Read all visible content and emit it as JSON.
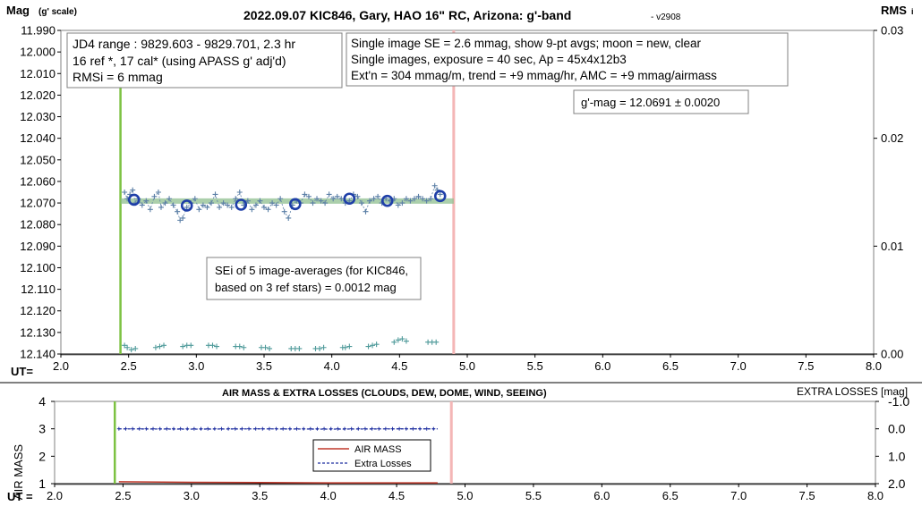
{
  "title": "2022.09.07 KIC846, Gary, HAO 16\" RC, Arizona: g'-band",
  "version": "- v2908",
  "top": {
    "ylabel_main": "Mag",
    "ylabel_sub": "(g' scale)",
    "y2label_main": "RMS",
    "y2label_sub": "i",
    "ut_label": "UT=",
    "ylim": [
      11.99,
      12.14
    ],
    "ytick_labels": [
      "11.990",
      "12.000",
      "12.010",
      "12.020",
      "12.030",
      "12.040",
      "12.050",
      "12.060",
      "12.070",
      "12.080",
      "12.090",
      "12.100",
      "12.110",
      "12.120",
      "12.130",
      "12.140"
    ],
    "y2lim": [
      0.0,
      0.03
    ],
    "y2tick_labels": [
      "0.00",
      "0.01",
      "0.02",
      "0.03"
    ],
    "xlim": [
      2.0,
      8.0
    ],
    "xtick_labels": [
      "2.0",
      "2.5",
      "3.0",
      "3.5",
      "4.0",
      "4.5",
      "5.0",
      "5.5",
      "6.0",
      "6.5",
      "7.0",
      "7.5",
      "8.0"
    ],
    "box1": [
      "JD4 range : 9829.603 - 9829.701,  2.3 hr",
      "16 ref *, 17 cal* (using APASS g' adj'd)",
      "RMSi = 6 mmag"
    ],
    "box2": [
      "Single image SE = 2.6 mmag, show  9-pt avgs; moon = new, clear",
      "Single images, exposure = 40 sec, Ap = 45x4x12b3",
      "Ext'n = 304 mmag/m, trend = +9 mmag/hr, AMC = +9 mmag/airmass"
    ],
    "gmag_box": "g'-mag = 12.0691 ± 0.0020",
    "sei_box": [
      "SEi of 5 image-averages (for KIC846,",
      "based on 3 ref stars) = 0.0012 mag"
    ]
  },
  "bottom": {
    "title": "AIR MASS & EXTRA LOSSES (CLOUDS, DEW, DOME, WIND, SEEING)",
    "ylabel": "AIR MASS",
    "y2label": "EXTRA LOSSES [mag]",
    "ut_label": "UT =",
    "ylim": [
      1,
      4
    ],
    "ytick_labels": [
      "1",
      "2",
      "3",
      "4"
    ],
    "y2tick_labels": [
      "-1.0",
      "0.0",
      "1.0",
      "2.0"
    ],
    "xtick_labels": [
      "2.0",
      "2.5",
      "3.0",
      "3.5",
      "4.0",
      "4.5",
      "5.0",
      "5.5",
      "6.0",
      "6.5",
      "7.0",
      "7.5",
      "8.0"
    ],
    "legend": [
      "AIR MASS",
      "Extra Losses"
    ]
  },
  "colors": {
    "start_line": "#7dc242",
    "end_line": "#f4b6b6",
    "avg_circles": "#1f3fa8",
    "points": "#5b7fa6",
    "rms_points": "#4f9a9a",
    "fit_band": "#8fbf8f",
    "airmass": "#c0392b",
    "extra_losses": "#1f2fa0"
  },
  "chart_data": [
    {
      "type": "scatter",
      "title": "2022.09.07 KIC846, Gary, HAO 16\" RC, Arizona: g'-band",
      "xlabel": "UT=",
      "ylabel": "Mag (g' scale)",
      "xlim": [
        2.0,
        8.0
      ],
      "ylim": [
        11.99,
        12.14
      ],
      "y_inverted": true,
      "y2lim": [
        0.0,
        0.03
      ],
      "ut_start": 2.44,
      "ut_end": 4.9,
      "grid": false,
      "series": [
        {
          "name": "single images",
          "x": [
            2.47,
            2.49,
            2.51,
            2.53,
            2.55,
            2.57,
            2.6,
            2.63,
            2.66,
            2.69,
            2.72,
            2.74,
            2.77,
            2.8,
            2.83,
            2.86,
            2.88,
            2.9,
            2.93,
            2.96,
            2.99,
            3.02,
            3.05,
            3.08,
            3.11,
            3.14,
            3.17,
            3.2,
            3.23,
            3.26,
            3.29,
            3.32,
            3.35,
            3.38,
            3.41,
            3.44,
            3.47,
            3.5,
            3.53,
            3.56,
            3.59,
            3.62,
            3.65,
            3.68,
            3.71,
            3.74,
            3.77,
            3.8,
            3.83,
            3.86,
            3.89,
            3.92,
            3.95,
            3.98,
            4.01,
            4.04,
            4.07,
            4.1,
            4.13,
            4.16,
            4.19,
            4.22,
            4.25,
            4.28,
            4.31,
            4.34,
            4.37,
            4.4,
            4.43,
            4.46,
            4.49,
            4.52,
            4.55,
            4.58,
            4.61,
            4.64,
            4.67,
            4.7,
            4.73,
            4.76,
            4.78,
            4.8
          ],
          "y": [
            12.065,
            12.068,
            12.066,
            12.064,
            12.07,
            12.068,
            12.071,
            12.069,
            12.073,
            12.067,
            12.065,
            12.072,
            12.07,
            12.068,
            12.071,
            12.074,
            12.078,
            12.077,
            12.072,
            12.07,
            12.068,
            12.073,
            12.071,
            12.072,
            12.07,
            12.066,
            12.072,
            12.07,
            12.071,
            12.072,
            12.068,
            12.065,
            12.071,
            12.069,
            12.073,
            12.071,
            12.069,
            12.072,
            12.073,
            12.07,
            12.071,
            12.068,
            12.074,
            12.077,
            12.071,
            12.069,
            12.07,
            12.066,
            12.067,
            12.07,
            12.068,
            12.069,
            12.07,
            12.066,
            12.068,
            12.067,
            12.068,
            12.07,
            12.069,
            12.066,
            12.067,
            12.07,
            12.074,
            12.069,
            12.068,
            12.067,
            12.07,
            12.068,
            12.069,
            12.068,
            12.071,
            12.07,
            12.068,
            12.069,
            12.068,
            12.067,
            12.068,
            12.069,
            12.068,
            12.062,
            12.064,
            12.066
          ]
        },
        {
          "name": "9-pt averages",
          "x": [
            2.54,
            2.93,
            3.33,
            3.73,
            4.13,
            4.41,
            4.8
          ],
          "y": [
            12.0685,
            12.0712,
            12.0708,
            12.0705,
            12.068,
            12.069,
            12.0668
          ]
        },
        {
          "name": "fit",
          "x": [
            2.44,
            4.9
          ],
          "y": [
            12.0691,
            12.0691
          ]
        },
        {
          "name": "RMSi",
          "axis": "y2",
          "x": [
            2.47,
            2.49,
            2.52,
            2.55,
            2.7,
            2.73,
            2.76,
            2.9,
            2.93,
            2.96,
            3.09,
            3.12,
            3.15,
            3.29,
            3.32,
            3.35,
            3.48,
            3.51,
            3.54,
            3.7,
            3.73,
            3.76,
            3.88,
            3.91,
            3.94,
            4.08,
            4.1,
            4.13,
            4.27,
            4.3,
            4.33,
            4.46,
            4.49,
            4.52,
            4.55,
            4.71,
            4.74,
            4.77
          ],
          "y": [
            0.0008,
            0.0006,
            0.0004,
            0.0005,
            0.0006,
            0.0007,
            0.0008,
            0.0007,
            0.0008,
            0.0008,
            0.0008,
            0.0008,
            0.0007,
            0.0007,
            0.0007,
            0.0006,
            0.0006,
            0.0006,
            0.0005,
            0.0005,
            0.0005,
            0.0005,
            0.0005,
            0.0005,
            0.0006,
            0.0006,
            0.0006,
            0.0007,
            0.0007,
            0.0008,
            0.0009,
            0.0011,
            0.0013,
            0.0014,
            0.0012,
            0.0011,
            0.0011,
            0.0011
          ]
        }
      ]
    },
    {
      "type": "line",
      "title": "AIR MASS & EXTRA LOSSES (CLOUDS, DEW, DOME, WIND, SEEING)",
      "xlabel": "UT =",
      "ylabel": "AIR MASS",
      "xlim": [
        2.0,
        8.0
      ],
      "ylim": [
        1,
        4
      ],
      "y2label": "EXTRA LOSSES [mag]",
      "y2lim": [
        -1.0,
        2.0
      ],
      "y2_inverted": true,
      "ut_start": 2.44,
      "ut_end": 4.9,
      "series": [
        {
          "name": "AIR MASS",
          "x": [
            2.47,
            3.0,
            3.5,
            4.0,
            4.5,
            4.8
          ],
          "y": [
            1.07,
            1.05,
            1.04,
            1.03,
            1.03,
            1.03
          ]
        },
        {
          "name": "Extra Losses",
          "axis": "y2",
          "x": [
            2.47,
            3.0,
            3.5,
            4.0,
            4.5,
            4.8
          ],
          "y": [
            0.0,
            0.01,
            0.0,
            0.01,
            0.0,
            0.0
          ]
        }
      ],
      "legend_position": "center-left"
    }
  ]
}
